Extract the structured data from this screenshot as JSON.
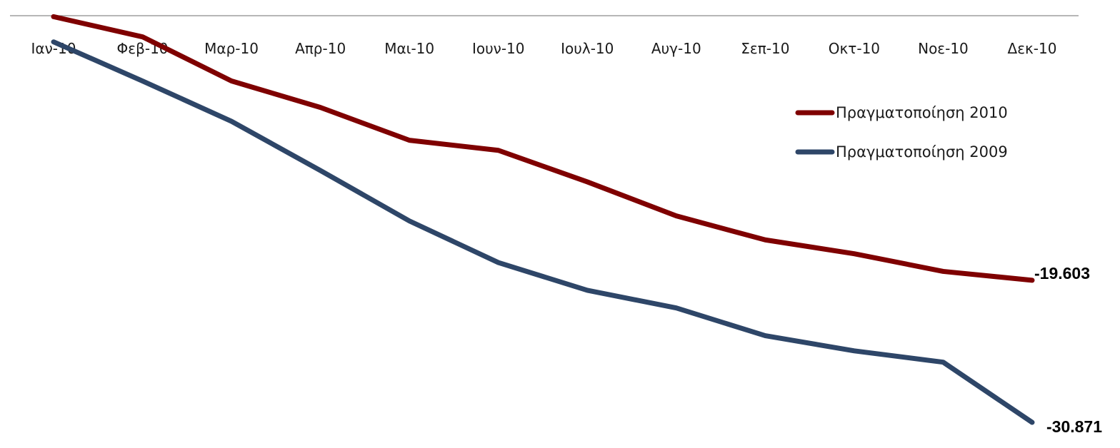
{
  "chart_data": {
    "type": "line",
    "categories": [
      "Ιαν-10",
      "Φεβ-10",
      "Μαρ-10",
      "Απρ-10",
      "Μαι-10",
      "Ιουν-10",
      "Ιουλ-10",
      "Αυγ-10",
      "Σεπ-10",
      "Οκτ-10",
      "Νοε-10",
      "Δεκ-10"
    ],
    "series": [
      {
        "name": "Πραγματοποίηση 2010",
        "color": "#7f0000",
        "values": [
          1300,
          -300,
          -3800,
          -5900,
          -8500,
          -9300,
          -11800,
          -14500,
          -16400,
          -17500,
          -18900,
          -19603
        ],
        "end_label": "-19.603"
      },
      {
        "name": "Πραγματοποίηση 2009",
        "color": "#2e4668",
        "values": [
          -700,
          -3800,
          -7000,
          -10900,
          -14900,
          -18200,
          -20400,
          -21800,
          -24000,
          -25200,
          -26100,
          -30871
        ],
        "end_label": "-30.871"
      }
    ],
    "ylim": [
      -32000,
      2000
    ],
    "xaxis_at": 0,
    "grid": false,
    "legend_position": "right"
  }
}
